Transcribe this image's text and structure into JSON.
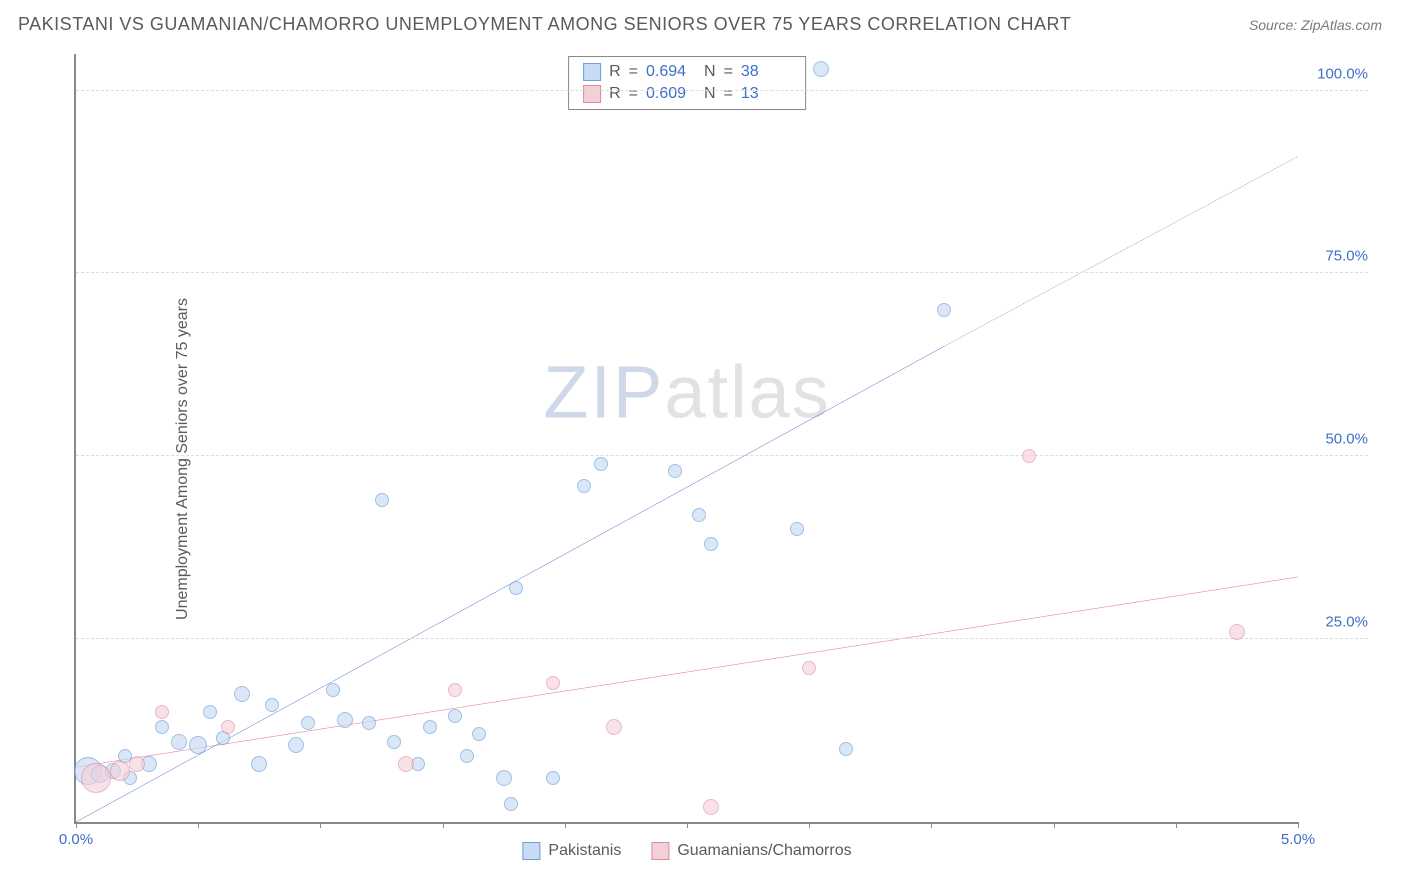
{
  "title": "PAKISTANI VS GUAMANIAN/CHAMORRO UNEMPLOYMENT AMONG SENIORS OVER 75 YEARS CORRELATION CHART",
  "source": "Source: ZipAtlas.com",
  "y_axis_label": "Unemployment Among Seniors over 75 years",
  "watermark_a": "ZIP",
  "watermark_b": "atlas",
  "chart": {
    "type": "scatter",
    "background_color": "#ffffff",
    "grid_color": "#dcdcdc",
    "axis_color": "#888888",
    "xlim": [
      0.0,
      5.0
    ],
    "ylim": [
      0.0,
      105.0
    ],
    "x_ticks": [
      0.0,
      0.5,
      1.0,
      1.5,
      2.0,
      2.5,
      3.0,
      3.5,
      4.0,
      4.5,
      5.0
    ],
    "x_tick_labels": {
      "0": "0.0%",
      "5": "5.0%"
    },
    "y_gridlines": [
      25.0,
      50.0,
      75.0,
      100.0
    ],
    "y_tick_labels": {
      "25": "25.0%",
      "50": "50.0%",
      "75": "75.0%",
      "100": "100.0%"
    },
    "title_fontsize": 18,
    "label_fontsize": 16,
    "tick_fontsize": 15,
    "tick_color": "#3f6fc4"
  },
  "series": [
    {
      "name": "Pakistanis",
      "fill": "#c7dbf2",
      "stroke": "#6f9fd8",
      "line_color": "#1f57c1",
      "line_width": 2.5,
      "fill_opacity": 0.65,
      "R": "0.694",
      "N": "38",
      "trend": {
        "x1": 0.0,
        "y1": 0.0,
        "x2": 3.55,
        "y2": 65.0,
        "x3": 5.0,
        "y3": 91.0
      },
      "points": [
        {
          "x": 0.05,
          "y": 7.0,
          "r": 14
        },
        {
          "x": 0.1,
          "y": 6.5,
          "r": 9
        },
        {
          "x": 0.15,
          "y": 7.0,
          "r": 8
        },
        {
          "x": 0.2,
          "y": 9.0,
          "r": 7
        },
        {
          "x": 0.22,
          "y": 6.0,
          "r": 7
        },
        {
          "x": 0.3,
          "y": 8.0,
          "r": 8
        },
        {
          "x": 0.35,
          "y": 13.0,
          "r": 7
        },
        {
          "x": 0.42,
          "y": 11.0,
          "r": 8
        },
        {
          "x": 0.5,
          "y": 10.5,
          "r": 9
        },
        {
          "x": 0.55,
          "y": 15.0,
          "r": 7
        },
        {
          "x": 0.6,
          "y": 11.5,
          "r": 7
        },
        {
          "x": 0.68,
          "y": 17.5,
          "r": 8
        },
        {
          "x": 0.75,
          "y": 8.0,
          "r": 8
        },
        {
          "x": 0.8,
          "y": 16.0,
          "r": 7
        },
        {
          "x": 0.9,
          "y": 10.5,
          "r": 8
        },
        {
          "x": 0.95,
          "y": 13.5,
          "r": 7
        },
        {
          "x": 1.05,
          "y": 18.0,
          "r": 7
        },
        {
          "x": 1.1,
          "y": 14.0,
          "r": 8
        },
        {
          "x": 1.2,
          "y": 13.5,
          "r": 7
        },
        {
          "x": 1.25,
          "y": 44.0,
          "r": 7
        },
        {
          "x": 1.3,
          "y": 11.0,
          "r": 7
        },
        {
          "x": 1.4,
          "y": 8.0,
          "r": 7
        },
        {
          "x": 1.45,
          "y": 13.0,
          "r": 7
        },
        {
          "x": 1.55,
          "y": 14.5,
          "r": 7
        },
        {
          "x": 1.6,
          "y": 9.0,
          "r": 7
        },
        {
          "x": 1.65,
          "y": 12.0,
          "r": 7
        },
        {
          "x": 1.75,
          "y": 6.0,
          "r": 8
        },
        {
          "x": 1.78,
          "y": 2.5,
          "r": 7
        },
        {
          "x": 1.8,
          "y": 32.0,
          "r": 7
        },
        {
          "x": 1.95,
          "y": 6.0,
          "r": 7
        },
        {
          "x": 2.08,
          "y": 46.0,
          "r": 7
        },
        {
          "x": 2.15,
          "y": 49.0,
          "r": 7
        },
        {
          "x": 2.45,
          "y": 48.0,
          "r": 7
        },
        {
          "x": 2.55,
          "y": 42.0,
          "r": 7
        },
        {
          "x": 2.6,
          "y": 38.0,
          "r": 7
        },
        {
          "x": 2.95,
          "y": 40.0,
          "r": 7
        },
        {
          "x": 3.05,
          "y": 103.0,
          "r": 8
        },
        {
          "x": 3.15,
          "y": 10.0,
          "r": 7
        },
        {
          "x": 3.55,
          "y": 70.0,
          "r": 7
        }
      ]
    },
    {
      "name": "Guamanians/Chamorros",
      "fill": "#f5cfd8",
      "stroke": "#dd8aa0",
      "line_color": "#d94f77",
      "line_width": 2.5,
      "fill_opacity": 0.6,
      "R": "0.609",
      "N": "13",
      "trend": {
        "x1": 0.0,
        "y1": 7.5,
        "x2": 5.0,
        "y2": 33.5,
        "x3": 5.0,
        "y3": 33.5
      },
      "points": [
        {
          "x": 0.08,
          "y": 6.0,
          "r": 15
        },
        {
          "x": 0.18,
          "y": 7.0,
          "r": 10
        },
        {
          "x": 0.25,
          "y": 8.0,
          "r": 8
        },
        {
          "x": 0.35,
          "y": 15.0,
          "r": 7
        },
        {
          "x": 0.62,
          "y": 13.0,
          "r": 7
        },
        {
          "x": 1.35,
          "y": 8.0,
          "r": 8
        },
        {
          "x": 1.55,
          "y": 18.0,
          "r": 7
        },
        {
          "x": 1.95,
          "y": 19.0,
          "r": 7
        },
        {
          "x": 2.2,
          "y": 13.0,
          "r": 8
        },
        {
          "x": 2.6,
          "y": 2.0,
          "r": 8
        },
        {
          "x": 3.0,
          "y": 21.0,
          "r": 7
        },
        {
          "x": 3.9,
          "y": 50.0,
          "r": 7
        },
        {
          "x": 4.75,
          "y": 26.0,
          "r": 8
        }
      ]
    }
  ],
  "stats_labels": {
    "R": "R",
    "eq": "=",
    "N": "N"
  }
}
